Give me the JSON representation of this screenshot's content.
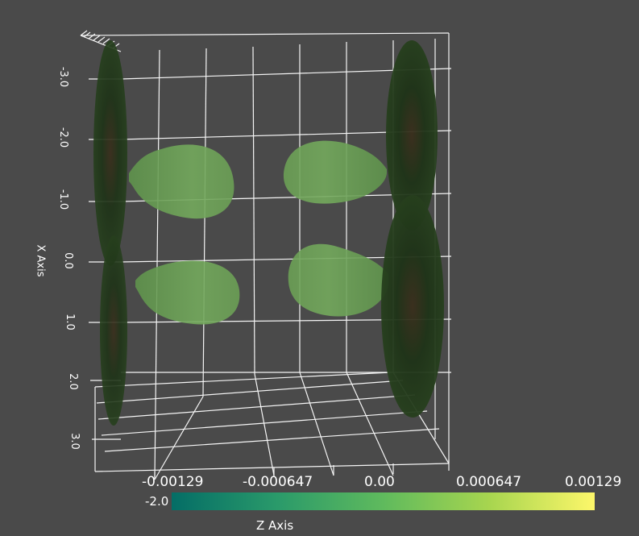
{
  "plot": {
    "axis_title": "X Axis",
    "x_ticks": [
      "-3.0",
      "-2.0",
      "-1.0",
      "0.0",
      "1.0",
      "2.0",
      "3.0"
    ],
    "colors": {
      "background": "#4a4a4a",
      "grid": "#ffffff",
      "lobe_fill": "#6fa35a",
      "disk_fill": "#1d3218"
    }
  },
  "colorbar": {
    "title": "Z Axis",
    "min_label": "-2.0",
    "ticks": [
      "-0.00129",
      "-0.000647",
      "0.00",
      "0.000647",
      "0.00129"
    ],
    "colormap": [
      "#046d66",
      "#2a9a6a",
      "#5fba5d",
      "#a7d54f",
      "#fdf76a"
    ]
  }
}
